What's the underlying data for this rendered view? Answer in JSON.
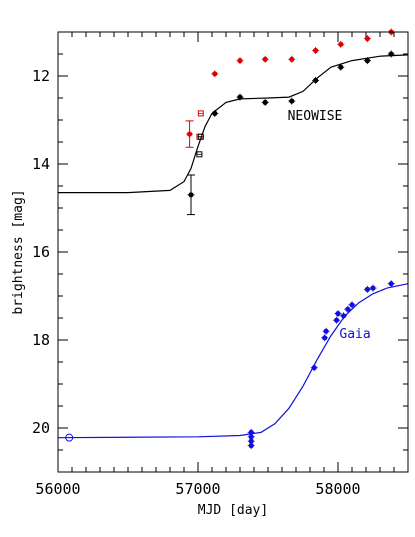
{
  "chart_data": {
    "type": "scatter",
    "xlabel": "MJD [day]",
    "ylabel": "brightness [mag]",
    "xlim": [
      56000,
      58500
    ],
    "ylim": [
      21,
      11
    ],
    "y_inverted": true,
    "grid": false,
    "x_ticks": [
      56000,
      57000,
      58000
    ],
    "x_tick_labels": [
      "56000",
      "57000",
      "58000"
    ],
    "y_ticks": [
      12,
      14,
      16,
      18,
      20
    ],
    "y_tick_labels": [
      "12",
      "14",
      "16",
      "18",
      "20"
    ],
    "annotations": [
      {
        "text": "NEOWISE",
        "x": 57640,
        "y": 13.0,
        "color": "#000000"
      },
      {
        "text": "Gaia",
        "x": 58010,
        "y": 17.95,
        "color": "#1010e0"
      }
    ],
    "series": [
      {
        "color": "#e00000",
        "marker": "filled-circle",
        "points": [
          {
            "x": 56940,
            "y": 13.32,
            "yerr": 0.3
          },
          {
            "x": 57120,
            "y": 11.95
          },
          {
            "x": 57300,
            "y": 11.65
          },
          {
            "x": 57480,
            "y": 11.62
          },
          {
            "x": 57670,
            "y": 11.62
          },
          {
            "x": 57840,
            "y": 11.42
          },
          {
            "x": 58020,
            "y": 11.28
          },
          {
            "x": 58210,
            "y": 11.15
          },
          {
            "x": 58380,
            "y": 11.0
          }
        ]
      },
      {
        "color": "#e00000",
        "marker": "open-square",
        "points": [
          {
            "x": 57010,
            "y": 13.38
          },
          {
            "x": 57020,
            "y": 12.85
          }
        ]
      },
      {
        "color": "#000000",
        "marker": "filled-circle",
        "points": [
          {
            "x": 56950,
            "y": 14.7,
            "yerr": 0.45
          },
          {
            "x": 57120,
            "y": 12.85
          },
          {
            "x": 57300,
            "y": 12.48
          },
          {
            "x": 57480,
            "y": 12.6
          },
          {
            "x": 57670,
            "y": 12.57
          },
          {
            "x": 57840,
            "y": 12.1
          },
          {
            "x": 58020,
            "y": 11.8
          },
          {
            "x": 58210,
            "y": 11.65
          },
          {
            "x": 58380,
            "y": 11.5
          }
        ]
      },
      {
        "color": "#000000",
        "marker": "open-square",
        "points": [
          {
            "x": 57010,
            "y": 13.78
          },
          {
            "x": 57020,
            "y": 13.38
          }
        ]
      },
      {
        "color": "#1010e0",
        "marker": "filled-circle",
        "points": [
          {
            "x": 57380,
            "y": 20.1
          },
          {
            "x": 57380,
            "y": 20.2
          },
          {
            "x": 57380,
            "y": 20.3
          },
          {
            "x": 57380,
            "y": 20.4
          },
          {
            "x": 57830,
            "y": 18.63
          },
          {
            "x": 57905,
            "y": 17.95
          },
          {
            "x": 57915,
            "y": 17.8
          },
          {
            "x": 57990,
            "y": 17.55
          },
          {
            "x": 58000,
            "y": 17.4
          },
          {
            "x": 58040,
            "y": 17.45
          },
          {
            "x": 58070,
            "y": 17.3
          },
          {
            "x": 58100,
            "y": 17.2
          },
          {
            "x": 58210,
            "y": 16.85
          },
          {
            "x": 58250,
            "y": 16.82
          },
          {
            "x": 58380,
            "y": 16.72
          }
        ]
      },
      {
        "color": "#1010e0",
        "marker": "open-circle",
        "points": [
          {
            "x": 56080,
            "y": 20.22
          }
        ]
      },
      {
        "color": "#000000",
        "marker": "line",
        "points": [
          {
            "x": 56000,
            "y": 14.65
          },
          {
            "x": 56500,
            "y": 14.65
          },
          {
            "x": 56800,
            "y": 14.6
          },
          {
            "x": 56900,
            "y": 14.4
          },
          {
            "x": 56950,
            "y": 14.1
          },
          {
            "x": 57000,
            "y": 13.6
          },
          {
            "x": 57050,
            "y": 13.15
          },
          {
            "x": 57100,
            "y": 12.85
          },
          {
            "x": 57200,
            "y": 12.6
          },
          {
            "x": 57300,
            "y": 12.52
          },
          {
            "x": 57500,
            "y": 12.5
          },
          {
            "x": 57650,
            "y": 12.48
          },
          {
            "x": 57750,
            "y": 12.35
          },
          {
            "x": 57850,
            "y": 12.05
          },
          {
            "x": 57950,
            "y": 11.8
          },
          {
            "x": 58100,
            "y": 11.65
          },
          {
            "x": 58300,
            "y": 11.55
          },
          {
            "x": 58500,
            "y": 11.52
          }
        ]
      },
      {
        "color": "#1010e0",
        "marker": "line",
        "points": [
          {
            "x": 56000,
            "y": 20.22
          },
          {
            "x": 57000,
            "y": 20.2
          },
          {
            "x": 57300,
            "y": 20.17
          },
          {
            "x": 57450,
            "y": 20.1
          },
          {
            "x": 57550,
            "y": 19.9
          },
          {
            "x": 57650,
            "y": 19.55
          },
          {
            "x": 57750,
            "y": 19.05
          },
          {
            "x": 57850,
            "y": 18.45
          },
          {
            "x": 57950,
            "y": 17.9
          },
          {
            "x": 58050,
            "y": 17.45
          },
          {
            "x": 58150,
            "y": 17.15
          },
          {
            "x": 58250,
            "y": 16.95
          },
          {
            "x": 58350,
            "y": 16.82
          },
          {
            "x": 58500,
            "y": 16.72
          }
        ]
      }
    ]
  }
}
